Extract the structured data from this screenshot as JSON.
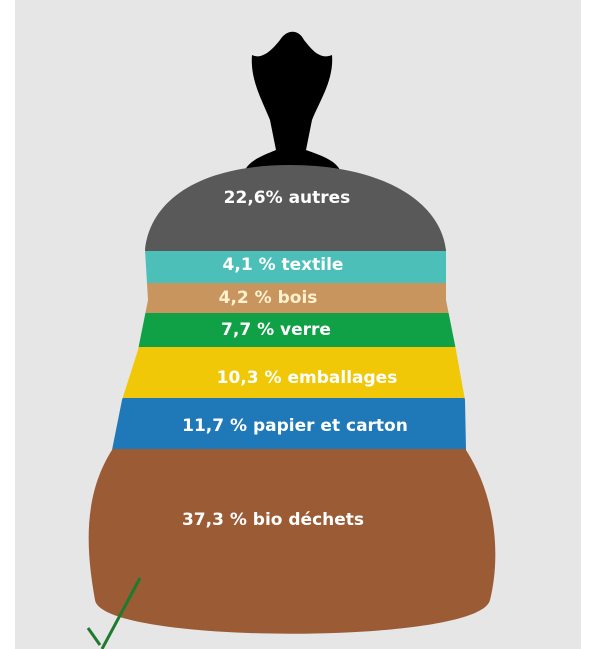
{
  "segments": [
    {
      "label": "22,6% autres",
      "color": "#595959",
      "text_color": "#ffffff"
    },
    {
      "label": "4,1 % textile",
      "color": "#4dbfb9",
      "text_color": "#ffffff"
    },
    {
      "label": "4,2 % bois",
      "color": "#c8955f",
      "text_color": "#fff2cc"
    },
    {
      "label": "7,7 % verre",
      "color": "#10a147",
      "text_color": "#ffffff"
    },
    {
      "label": "10,3 % emballages",
      "color": "#f0c808",
      "text_color": "#ffffff"
    },
    {
      "label": "11,7 % papier et carton",
      "color": "#1f78b8",
      "text_color": "#ffffff"
    },
    {
      "label": "37,3 % bio déchets",
      "color": "#9a5b35",
      "text_color": "#ffffff"
    }
  ]
}
